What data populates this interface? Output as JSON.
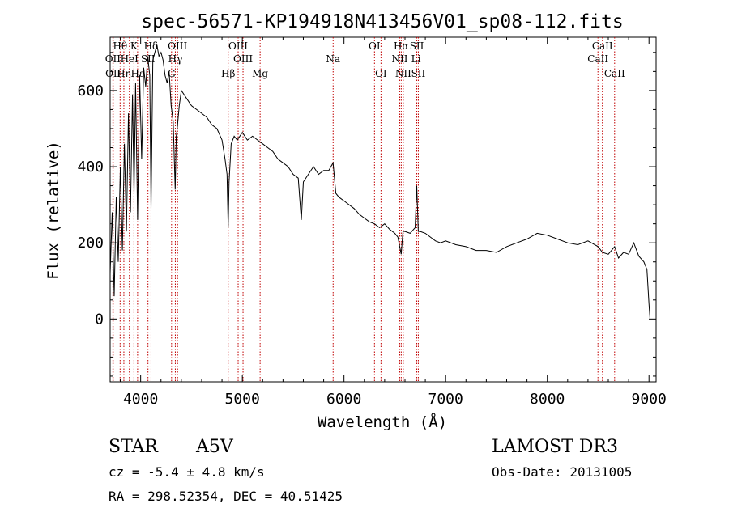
{
  "chart_data": {
    "type": "line",
    "title": "spec-56571-KP194918N413456V01_sp08-112.fits",
    "xlabel": "Wavelength (Å)",
    "ylabel": "Flux (relative)",
    "xlim": [
      3700,
      9070
    ],
    "ylim": [
      -165,
      740
    ],
    "xticks": [
      4000,
      5000,
      6000,
      7000,
      8000,
      9000
    ],
    "yticks": [
      0,
      200,
      400,
      600
    ],
    "grid": false,
    "series": [
      {
        "name": "spectrum",
        "x": [
          3700,
          3720,
          3740,
          3760,
          3780,
          3800,
          3820,
          3840,
          3860,
          3880,
          3900,
          3920,
          3935,
          3950,
          3970,
          3990,
          4010,
          4030,
          4050,
          4070,
          4090,
          4102,
          4120,
          4140,
          4160,
          4180,
          4200,
          4220,
          4240,
          4260,
          4280,
          4300,
          4320,
          4340,
          4350,
          4360,
          4380,
          4400,
          4450,
          4500,
          4550,
          4600,
          4650,
          4700,
          4750,
          4800,
          4830,
          4850,
          4861,
          4870,
          4890,
          4920,
          4950,
          5000,
          5050,
          5100,
          5150,
          5200,
          5250,
          5300,
          5350,
          5400,
          5450,
          5500,
          5550,
          5580,
          5600,
          5650,
          5700,
          5750,
          5800,
          5850,
          5893,
          5920,
          5950,
          6000,
          6050,
          6100,
          6150,
          6200,
          6250,
          6300,
          6350,
          6400,
          6450,
          6500,
          6530,
          6563,
          6580,
          6600,
          6650,
          6700,
          6716,
          6731,
          6750,
          6800,
          6850,
          6900,
          6950,
          7000,
          7100,
          7200,
          7300,
          7400,
          7500,
          7600,
          7700,
          7800,
          7900,
          8000,
          8100,
          8200,
          8300,
          8400,
          8500,
          8542,
          8600,
          8662,
          8700,
          8750,
          8800,
          8850,
          8900,
          8950,
          8980,
          9000,
          9010
        ],
        "values": [
          120,
          280,
          60,
          320,
          150,
          400,
          180,
          460,
          230,
          540,
          280,
          590,
          330,
          620,
          260,
          640,
          420,
          660,
          610,
          690,
          640,
          290,
          680,
          700,
          720,
          690,
          700,
          680,
          640,
          620,
          650,
          560,
          520,
          340,
          480,
          500,
          560,
          600,
          580,
          560,
          550,
          540,
          530,
          510,
          500,
          470,
          420,
          380,
          240,
          360,
          460,
          480,
          470,
          490,
          470,
          480,
          470,
          460,
          450,
          440,
          420,
          410,
          400,
          380,
          370,
          260,
          360,
          380,
          400,
          380,
          390,
          390,
          410,
          330,
          320,
          310,
          300,
          290,
          275,
          265,
          255,
          250,
          240,
          250,
          235,
          225,
          215,
          170,
          230,
          230,
          225,
          240,
          350,
          230,
          230,
          225,
          215,
          205,
          200,
          205,
          195,
          190,
          180,
          180,
          175,
          190,
          200,
          210,
          225,
          220,
          210,
          200,
          195,
          205,
          190,
          175,
          170,
          190,
          160,
          175,
          170,
          200,
          165,
          150,
          130,
          40,
          0
        ]
      }
    ],
    "lines": [
      {
        "label": "Hθ",
        "x": 3798,
        "row": 1
      },
      {
        "label": "OII",
        "x": 3727,
        "row": 2
      },
      {
        "label": "OII",
        "x": 3730,
        "row": 3
      },
      {
        "label": "K",
        "x": 3934,
        "row": 1
      },
      {
        "label": "HeI",
        "x": 3889,
        "row": 2
      },
      {
        "label": "Hη",
        "x": 3835,
        "row": 3
      },
      {
        "label": "Hε",
        "x": 3970,
        "row": 3
      },
      {
        "label": "Hδ",
        "x": 4102,
        "row": 1
      },
      {
        "label": "SII",
        "x": 4072,
        "row": 2
      },
      {
        "label": "OIII",
        "x": 4363,
        "row": 1
      },
      {
        "label": "Hγ",
        "x": 4341,
        "row": 2
      },
      {
        "label": "G",
        "x": 4304,
        "row": 3
      },
      {
        "label": "OIII",
        "x": 4959,
        "row": 1
      },
      {
        "label": "OIII",
        "x": 5007,
        "row": 2
      },
      {
        "label": "Hβ",
        "x": 4861,
        "row": 3
      },
      {
        "label": "Mg",
        "x": 5175,
        "row": 3
      },
      {
        "label": "Na",
        "x": 5893,
        "row": 2
      },
      {
        "label": "OI",
        "x": 6300,
        "row": 1
      },
      {
        "label": "OI",
        "x": 6364,
        "row": 3
      },
      {
        "label": "Hα",
        "x": 6563,
        "row": 1
      },
      {
        "label": "SII",
        "x": 6716,
        "row": 1
      },
      {
        "label": "NII",
        "x": 6548,
        "row": 2
      },
      {
        "label": "Li",
        "x": 6708,
        "row": 2
      },
      {
        "label": "NII",
        "x": 6583,
        "row": 3
      },
      {
        "label": "SII",
        "x": 6731,
        "row": 3
      },
      {
        "label": "CaII",
        "x": 8542,
        "row": 1
      },
      {
        "label": "CaII",
        "x": 8498,
        "row": 2
      },
      {
        "label": "CaII",
        "x": 8662,
        "row": 3
      }
    ]
  },
  "info": {
    "object_class": "STAR",
    "subclass": "A5V",
    "survey": "LAMOST DR3",
    "cz": "cz = -5.4 ± 4.8 km/s",
    "obs_date": "Obs-Date: 20131005",
    "coords": "RA = 298.52354, DEC =  40.51425"
  }
}
